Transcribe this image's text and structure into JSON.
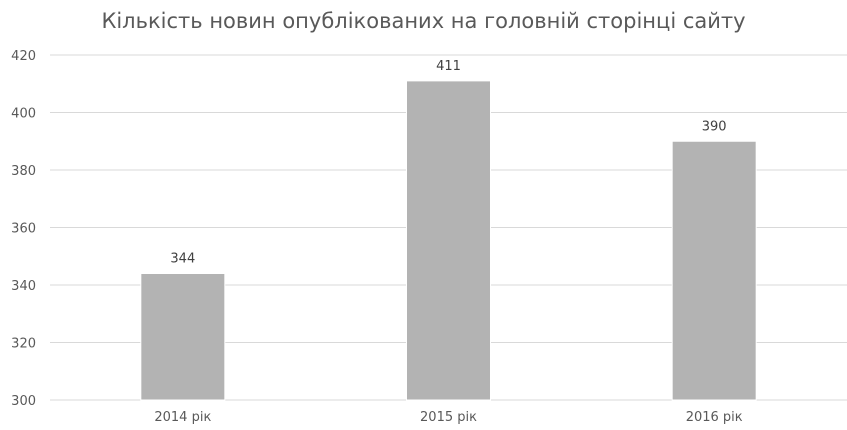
{
  "chart_data": {
    "type": "bar",
    "title": "Кількість новин опублікованих на головній сторінці сайту",
    "xlabel": "",
    "ylabel": "",
    "categories": [
      "2014 рік",
      "2015 рік",
      "2016 рік"
    ],
    "values": [
      344,
      411,
      390
    ],
    "data_labels": [
      "344",
      "411",
      "390"
    ],
    "ylim": [
      300,
      420
    ],
    "yticks": [
      300,
      320,
      340,
      360,
      380,
      400,
      420
    ],
    "ytick_labels": [
      "300",
      "320",
      "340",
      "360",
      "380",
      "400",
      "420"
    ],
    "grid": true,
    "legend": "none",
    "colors": {
      "bar": "#b3b3b3",
      "bar_edge": "#ffffff",
      "grid": "#d9d9d9",
      "text": "#595959"
    }
  }
}
